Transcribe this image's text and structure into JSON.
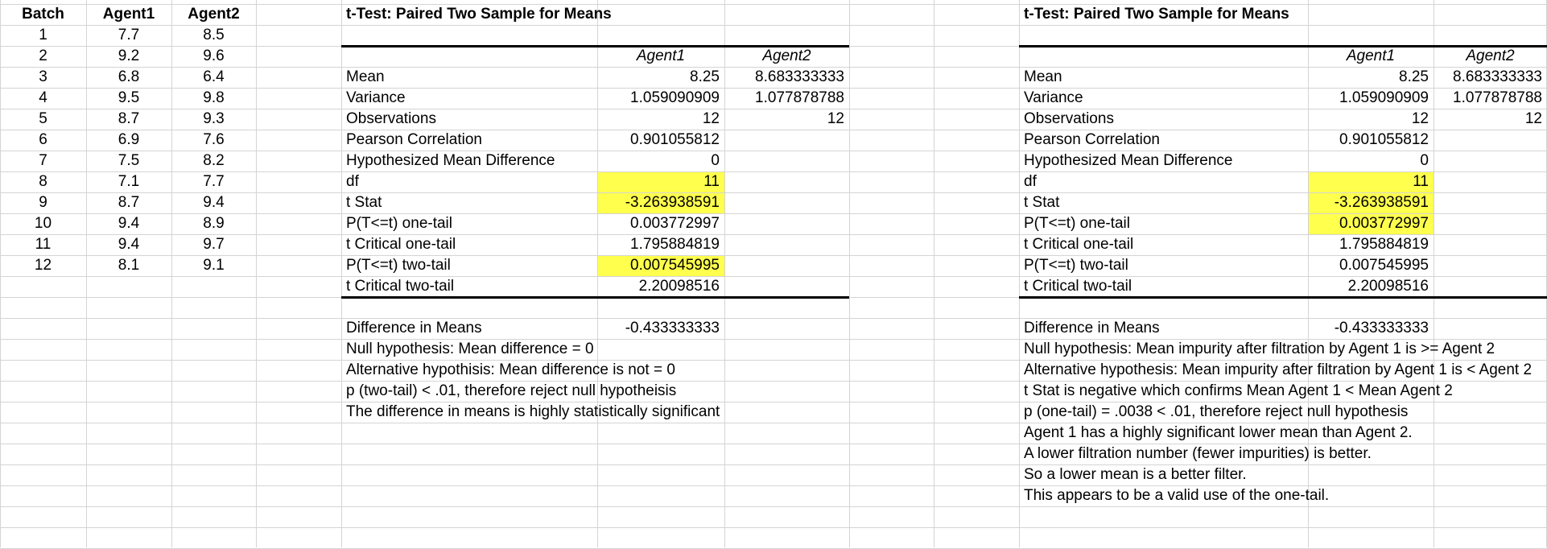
{
  "data_table": {
    "headers": [
      "Batch",
      "Agent1",
      "Agent2"
    ],
    "rows": [
      [
        "1",
        "7.7",
        "8.5"
      ],
      [
        "2",
        "9.2",
        "9.6"
      ],
      [
        "3",
        "6.8",
        "6.4"
      ],
      [
        "4",
        "9.5",
        "9.8"
      ],
      [
        "5",
        "8.7",
        "9.3"
      ],
      [
        "6",
        "6.9",
        "7.6"
      ],
      [
        "7",
        "7.5",
        "8.2"
      ],
      [
        "8",
        "7.1",
        "7.7"
      ],
      [
        "9",
        "8.7",
        "9.4"
      ],
      [
        "10",
        "9.4",
        "8.9"
      ],
      [
        "11",
        "9.4",
        "9.7"
      ],
      [
        "12",
        "8.1",
        "9.1"
      ]
    ]
  },
  "analysis_left": {
    "title": "t-Test: Paired Two Sample for Means",
    "col_headers": [
      "Agent1",
      "Agent2"
    ],
    "stats": [
      {
        "label": "Mean",
        "v1": "8.25",
        "v2": "8.683333333",
        "highlight": false
      },
      {
        "label": "Variance",
        "v1": "1.059090909",
        "v2": "1.077878788",
        "highlight": false
      },
      {
        "label": "Observations",
        "v1": "12",
        "v2": "12",
        "highlight": false
      },
      {
        "label": "Pearson Correlation",
        "v1": "0.901055812",
        "v2": "",
        "highlight": false
      },
      {
        "label": "Hypothesized Mean Difference",
        "v1": "0",
        "v2": "",
        "highlight": false
      },
      {
        "label": "df",
        "v1": "11",
        "v2": "",
        "highlight": true
      },
      {
        "label": "t Stat",
        "v1": "-3.263938591",
        "v2": "",
        "highlight": true
      },
      {
        "label": "P(T<=t) one-tail",
        "v1": "0.003772997",
        "v2": "",
        "highlight": false
      },
      {
        "label": "t Critical one-tail",
        "v1": "1.795884819",
        "v2": "",
        "highlight": false
      },
      {
        "label": "P(T<=t) two-tail",
        "v1": "0.007545995",
        "v2": "",
        "highlight": true
      },
      {
        "label": "t Critical two-tail",
        "v1": "2.20098516",
        "v2": "",
        "highlight": false
      }
    ],
    "diff_label": "Difference in Means",
    "diff_value": "-0.433333333",
    "notes": [
      "Null hypothesis: Mean difference = 0",
      "Alternative hypothisis: Mean difference is not = 0",
      "p (two-tail) < .01, therefore reject null hypotheisis",
      "The difference in means is highly statistically significant"
    ]
  },
  "analysis_right": {
    "title": "t-Test: Paired Two Sample for Means",
    "col_headers": [
      "Agent1",
      "Agent2"
    ],
    "stats": [
      {
        "label": "Mean",
        "v1": "8.25",
        "v2": "8.683333333",
        "highlight": false
      },
      {
        "label": "Variance",
        "v1": "1.059090909",
        "v2": "1.077878788",
        "highlight": false
      },
      {
        "label": "Observations",
        "v1": "12",
        "v2": "12",
        "highlight": false
      },
      {
        "label": "Pearson Correlation",
        "v1": "0.901055812",
        "v2": "",
        "highlight": false
      },
      {
        "label": "Hypothesized Mean Difference",
        "v1": "0",
        "v2": "",
        "highlight": false
      },
      {
        "label": "df",
        "v1": "11",
        "v2": "",
        "highlight": true
      },
      {
        "label": "t Stat",
        "v1": "-3.263938591",
        "v2": "",
        "highlight": true
      },
      {
        "label": "P(T<=t) one-tail",
        "v1": "0.003772997",
        "v2": "",
        "highlight": true
      },
      {
        "label": "t Critical one-tail",
        "v1": "1.795884819",
        "v2": "",
        "highlight": false
      },
      {
        "label": "P(T<=t) two-tail",
        "v1": "0.007545995",
        "v2": "",
        "highlight": false
      },
      {
        "label": "t Critical two-tail",
        "v1": "2.20098516",
        "v2": "",
        "highlight": false
      }
    ],
    "diff_label": "Difference in Means",
    "diff_value": "-0.433333333",
    "notes": [
      "Null hypothesis: Mean impurity after filtration by Agent 1 is >= Agent 2",
      "Alternative hypothesis: Mean impurity after filtration by Agent 1 is < Agent 2",
      "t Stat is negative which confirms Mean Agent 1 < Mean Agent 2",
      "p (one-tail) = .0038 < .01, therefore reject null hypothesis",
      "Agent 1 has a highly significant lower mean than Agent 2.",
      "A lower filtration number (fewer impurities) is better.",
      "So a lower mean is a better filter.",
      "This appears to be a valid use of the one-tail."
    ]
  },
  "colors": {
    "highlight": "#ffff4d",
    "gridline": "#d4d4d4",
    "rule": "#000000"
  }
}
